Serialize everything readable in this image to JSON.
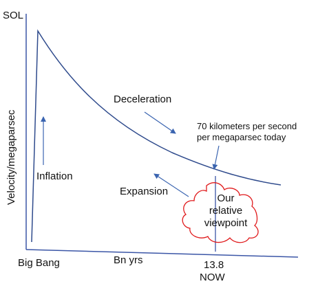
{
  "labels": {
    "sol": "SOL",
    "y_axis": "Velocity/megaparsec",
    "deceleration": "Deceleration",
    "rate_line1": "70 kilometers per second",
    "rate_line2": "per megaparsec today",
    "inflation": "Inflation",
    "expansion": "Expansion",
    "viewpoint_line1": "Our",
    "viewpoint_line2": "relative",
    "viewpoint_line3": "viewpoint",
    "big_bang": "Big Bang",
    "bn_yrs": "Bn yrs",
    "age": "13.8",
    "now": "NOW"
  },
  "colors": {
    "axis": "#3a55a6",
    "curve": "#2e4a8c",
    "arrow": "#3a64b0",
    "cloud": "#e0191b",
    "text": "#111111"
  }
}
